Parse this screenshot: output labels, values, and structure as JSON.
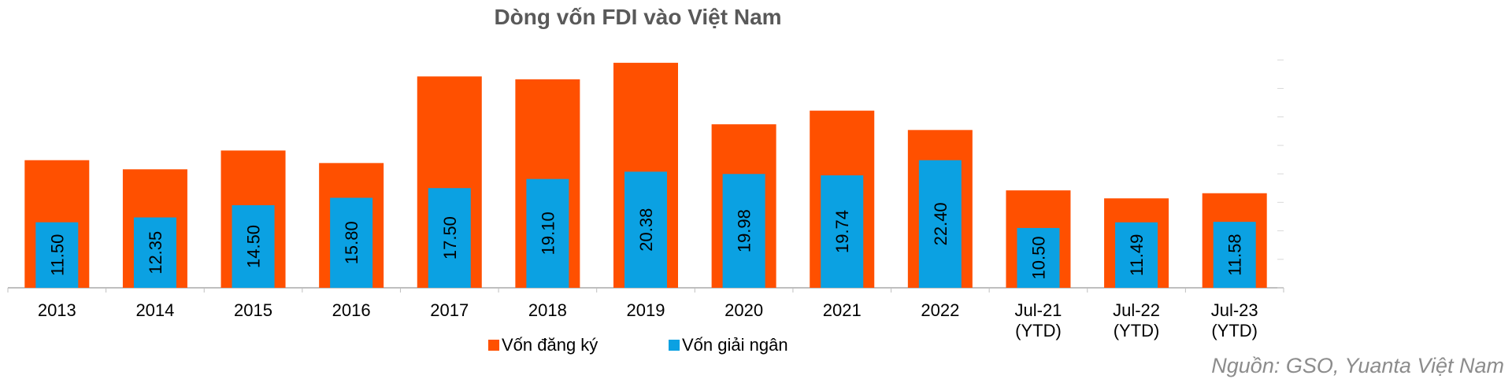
{
  "chart_data": {
    "type": "bar",
    "title": "Dòng vốn FDI vào Việt Nam",
    "categories": [
      [
        "2013"
      ],
      [
        "2014"
      ],
      [
        "2015"
      ],
      [
        "2016"
      ],
      [
        "2017"
      ],
      [
        "2018"
      ],
      [
        "2019"
      ],
      [
        "2020"
      ],
      [
        "2021"
      ],
      [
        "2022"
      ],
      [
        "Jul-21",
        "(YTD)"
      ],
      [
        "Jul-22",
        "(YTD)"
      ],
      [
        "Jul-23",
        "(YTD)"
      ]
    ],
    "series": [
      {
        "name": "Vốn đăng ký",
        "color": "#FF5000",
        "values": [
          22.4,
          20.8,
          24.1,
          21.9,
          37.1,
          36.6,
          39.5,
          28.7,
          31.1,
          27.7,
          17.1,
          15.7,
          16.6
        ]
      },
      {
        "name": "Vốn giải ngân",
        "color": "#0BA1E2",
        "values": [
          11.5,
          12.35,
          14.5,
          15.8,
          17.5,
          19.1,
          20.38,
          19.98,
          19.74,
          22.4,
          10.5,
          11.49,
          11.58
        ],
        "labels": [
          "11.50",
          "12.35",
          "14.50",
          "15.80",
          "17.50",
          "19.10",
          "20.38",
          "19.98",
          "19.74",
          "22.40",
          "10.50",
          "11.49",
          "11.58"
        ]
      }
    ],
    "ylim": [
      0,
      45
    ],
    "legend_position": "bottom"
  },
  "source_note": "Nguồn: GSO, Yuanta Việt Nam"
}
